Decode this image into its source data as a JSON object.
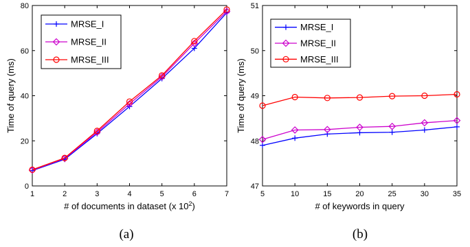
{
  "chart_data": [
    {
      "type": "line",
      "caption": "(a)",
      "xlabel": "# of documents in dataset (x 10",
      "xlabel_sup": "2",
      "xlabel_end": ")",
      "ylabel": "Time of query (ms)",
      "xlim": [
        1,
        7
      ],
      "ylim": [
        0,
        80
      ],
      "xticks": [
        1,
        2,
        3,
        4,
        5,
        6,
        7
      ],
      "yticks": [
        0,
        20,
        40,
        60,
        80
      ],
      "x": [
        1,
        2,
        3,
        4,
        5,
        6,
        7
      ],
      "legend_position": "top-left",
      "series": [
        {
          "name": "MRSE_I",
          "values": [
            6.8,
            11.8,
            23.2,
            35.2,
            47.6,
            61.0,
            76.8
          ],
          "color": "#0000ff",
          "marker": "plus"
        },
        {
          "name": "MRSE_II",
          "values": [
            7.0,
            12.2,
            23.8,
            36.4,
            48.4,
            63.2,
            77.4
          ],
          "color": "#cc00cc",
          "marker": "diamond"
        },
        {
          "name": "MRSE_III",
          "values": [
            7.2,
            12.4,
            24.4,
            37.4,
            49.0,
            64.2,
            78.2
          ],
          "color": "#ff0000",
          "marker": "circle"
        }
      ]
    },
    {
      "type": "line",
      "caption": "(b)",
      "xlabel": "# of keywords in query",
      "ylabel": "Time of query (ms)",
      "xlim": [
        5,
        35
      ],
      "ylim": [
        47,
        51
      ],
      "xticks": [
        5,
        10,
        15,
        20,
        25,
        30,
        35
      ],
      "yticks": [
        47,
        48,
        49,
        50,
        51
      ],
      "x": [
        5,
        10,
        15,
        20,
        25,
        30,
        35
      ],
      "legend_position": "top-left",
      "series": [
        {
          "name": "MRSE_I",
          "values": [
            47.9,
            48.06,
            48.15,
            48.18,
            48.19,
            48.24,
            48.31
          ],
          "color": "#0000ff",
          "marker": "plus"
        },
        {
          "name": "MRSE_II",
          "values": [
            48.03,
            48.24,
            48.25,
            48.3,
            48.32,
            48.4,
            48.45
          ],
          "color": "#cc00cc",
          "marker": "diamond"
        },
        {
          "name": "MRSE_III",
          "values": [
            48.78,
            48.97,
            48.95,
            48.96,
            48.99,
            49.0,
            49.03
          ],
          "color": "#ff0000",
          "marker": "circle"
        }
      ]
    }
  ]
}
